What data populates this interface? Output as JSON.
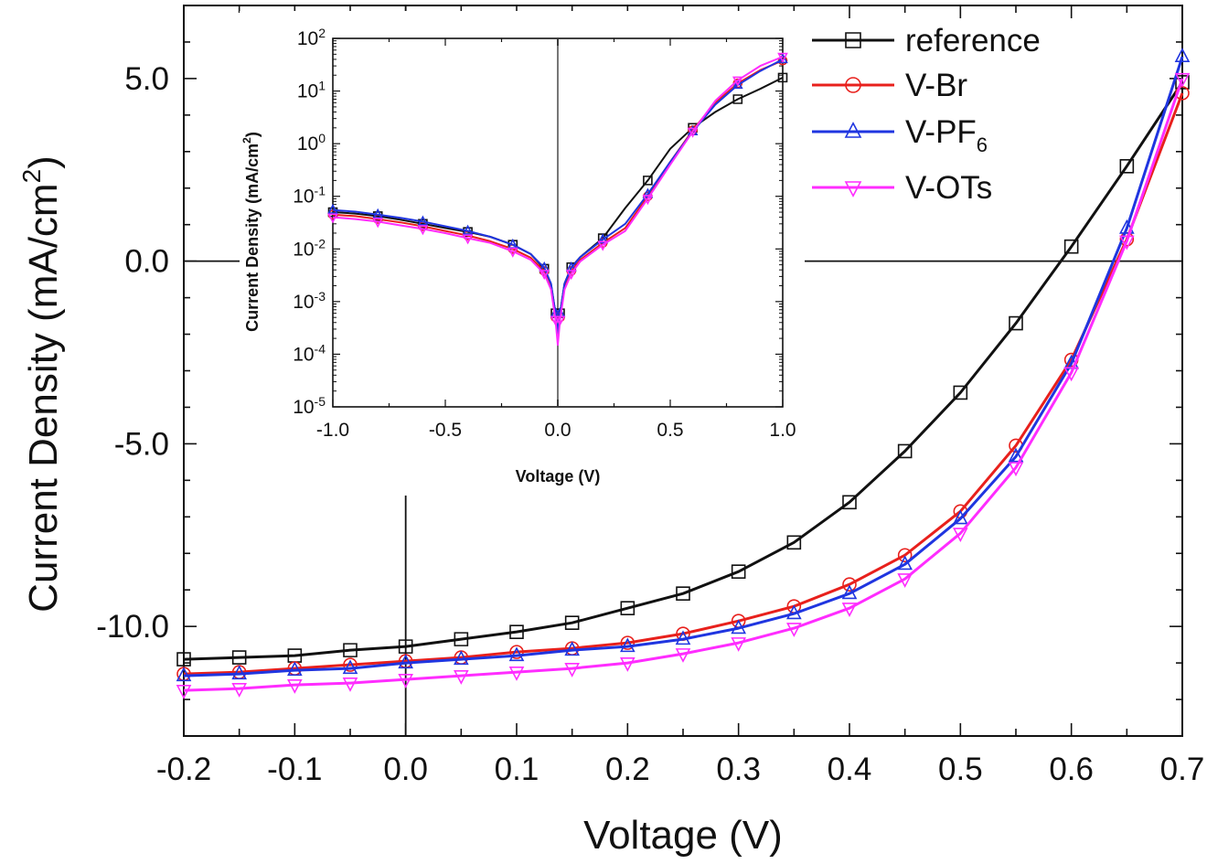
{
  "chart_data": [
    {
      "type": "line",
      "xlabel": "Voltage (V)",
      "ylabel": "Current Density (mA/cm²)",
      "xlim": [
        -0.2,
        0.7
      ],
      "ylim": [
        -13.0,
        7.0
      ],
      "xticks": [
        -0.2,
        -0.1,
        0.0,
        0.1,
        0.2,
        0.3,
        0.4,
        0.5,
        0.6,
        0.7
      ],
      "xtick_labels": [
        "-0.2",
        "-0.1",
        "0.0",
        "0.1",
        "0.2",
        "0.3",
        "0.4",
        "0.5",
        "0.6",
        "0.7"
      ],
      "yticks": [
        -10,
        -5,
        0,
        5
      ],
      "ytick_labels": [
        "-10.0",
        "-5.0",
        "0.0",
        "5.0"
      ],
      "legend_position": "top-right",
      "series": [
        {
          "name": "reference",
          "color": "#111111",
          "marker": "square",
          "x": [
            -0.2,
            -0.15,
            -0.1,
            -0.05,
            0.0,
            0.05,
            0.1,
            0.15,
            0.2,
            0.25,
            0.3,
            0.35,
            0.4,
            0.45,
            0.5,
            0.55,
            0.6,
            0.65,
            0.7
          ],
          "y": [
            -10.9,
            -10.85,
            -10.8,
            -10.65,
            -10.55,
            -10.35,
            -10.15,
            -9.9,
            -9.5,
            -9.1,
            -8.5,
            -7.7,
            -6.6,
            -5.2,
            -3.6,
            -1.7,
            0.4,
            2.6,
            4.9
          ]
        },
        {
          "name": "V-Br",
          "color": "#e8201c",
          "marker": "circle",
          "x": [
            -0.2,
            -0.15,
            -0.1,
            -0.05,
            0.0,
            0.05,
            0.1,
            0.15,
            0.2,
            0.25,
            0.3,
            0.35,
            0.4,
            0.45,
            0.5,
            0.55,
            0.6,
            0.65,
            0.7
          ],
          "y": [
            -11.3,
            -11.25,
            -11.15,
            -11.05,
            -10.95,
            -10.85,
            -10.7,
            -10.6,
            -10.45,
            -10.2,
            -9.85,
            -9.45,
            -8.85,
            -8.05,
            -6.85,
            -5.05,
            -2.7,
            0.6,
            4.6
          ]
        },
        {
          "name": "V-PF6",
          "color": "#1f35e0",
          "marker": "triangle-up",
          "x": [
            -0.2,
            -0.15,
            -0.1,
            -0.05,
            0.0,
            0.05,
            0.1,
            0.15,
            0.2,
            0.25,
            0.3,
            0.35,
            0.4,
            0.45,
            0.5,
            0.55,
            0.6,
            0.65,
            0.7
          ],
          "y": [
            -11.35,
            -11.3,
            -11.2,
            -11.15,
            -11.0,
            -10.9,
            -10.8,
            -10.65,
            -10.55,
            -10.35,
            -10.05,
            -9.65,
            -9.1,
            -8.3,
            -7.05,
            -5.35,
            -2.8,
            0.9,
            5.6
          ]
        },
        {
          "name": "V-OTs",
          "color": "#ff2cff",
          "marker": "triangle-down",
          "x": [
            -0.2,
            -0.15,
            -0.1,
            -0.05,
            0.0,
            0.05,
            0.1,
            0.15,
            0.2,
            0.25,
            0.3,
            0.35,
            0.4,
            0.45,
            0.5,
            0.55,
            0.6,
            0.65,
            0.7
          ],
          "y": [
            -11.75,
            -11.7,
            -11.6,
            -11.55,
            -11.45,
            -11.35,
            -11.25,
            -11.15,
            -11.0,
            -10.75,
            -10.45,
            -10.05,
            -9.5,
            -8.7,
            -7.45,
            -5.65,
            -3.05,
            0.55,
            5.0
          ]
        }
      ]
    },
    {
      "type": "line",
      "xlabel": "Voltage (V)",
      "ylabel": "Current Density (mA/cm²)",
      "xlim": [
        -1.0,
        1.0
      ],
      "ylim": [
        1e-05,
        100
      ],
      "y_scale": "log",
      "xticks": [
        -1.0,
        -0.5,
        0.0,
        0.5,
        1.0
      ],
      "xtick_labels": [
        "-1.0",
        "-0.5",
        "0.0",
        "0.5",
        "1.0"
      ],
      "ytick_labels": [
        "10-5",
        "10-4",
        "10-3",
        "10-2",
        "10-1",
        "100",
        "101",
        "102"
      ],
      "series": [
        {
          "name": "reference",
          "color": "#111111",
          "marker": "square",
          "x": [
            -1.0,
            -0.9,
            -0.8,
            -0.7,
            -0.6,
            -0.5,
            -0.4,
            -0.3,
            -0.2,
            -0.12,
            -0.06,
            -0.03,
            -0.01,
            0.0,
            0.01,
            0.03,
            0.06,
            0.1,
            0.2,
            0.3,
            0.4,
            0.5,
            0.6,
            0.7,
            0.8,
            0.9,
            1.0
          ],
          "y": [
            0.05,
            0.047,
            0.042,
            0.036,
            0.03,
            0.025,
            0.021,
            0.017,
            0.012,
            0.008,
            0.0042,
            0.0021,
            0.0006,
            0.00018,
            0.0006,
            0.0022,
            0.0045,
            0.007,
            0.016,
            0.06,
            0.2,
            0.8,
            2.0,
            4.0,
            7.0,
            11.0,
            18.0
          ]
        },
        {
          "name": "V-Br",
          "color": "#e8201c",
          "marker": "circle",
          "x": [
            -1.0,
            -0.9,
            -0.8,
            -0.7,
            -0.6,
            -0.5,
            -0.4,
            -0.3,
            -0.2,
            -0.12,
            -0.06,
            -0.03,
            -0.01,
            0.0,
            0.01,
            0.03,
            0.06,
            0.1,
            0.2,
            0.3,
            0.4,
            0.5,
            0.6,
            0.7,
            0.8,
            0.9,
            1.0
          ],
          "y": [
            0.045,
            0.042,
            0.037,
            0.032,
            0.027,
            0.022,
            0.018,
            0.014,
            0.01,
            0.0068,
            0.0038,
            0.0019,
            0.0005,
            0.0002,
            0.0005,
            0.0019,
            0.0038,
            0.0062,
            0.013,
            0.025,
            0.1,
            0.45,
            1.8,
            6.0,
            14.0,
            25.0,
            38.0
          ]
        },
        {
          "name": "V-PF6",
          "color": "#1f35e0",
          "marker": "triangle-up",
          "x": [
            -1.0,
            -0.9,
            -0.8,
            -0.7,
            -0.6,
            -0.5,
            -0.4,
            -0.3,
            -0.2,
            -0.12,
            -0.06,
            -0.03,
            -0.01,
            0.0,
            0.01,
            0.03,
            0.06,
            0.1,
            0.2,
            0.3,
            0.4,
            0.5,
            0.6,
            0.7,
            0.8,
            0.9,
            1.0
          ],
          "y": [
            0.055,
            0.051,
            0.045,
            0.039,
            0.033,
            0.027,
            0.022,
            0.017,
            0.012,
            0.008,
            0.0044,
            0.0022,
            0.0006,
            0.00025,
            0.0006,
            0.0022,
            0.0044,
            0.007,
            0.015,
            0.03,
            0.11,
            0.45,
            1.7,
            5.5,
            13.0,
            24.0,
            40.0
          ]
        },
        {
          "name": "V-OTs",
          "color": "#ff2cff",
          "marker": "triangle-down",
          "x": [
            -1.0,
            -0.9,
            -0.8,
            -0.7,
            -0.6,
            -0.5,
            -0.4,
            -0.3,
            -0.2,
            -0.12,
            -0.06,
            -0.03,
            -0.01,
            0.0,
            0.01,
            0.03,
            0.06,
            0.1,
            0.2,
            0.3,
            0.4,
            0.5,
            0.6,
            0.7,
            0.8,
            0.9,
            1.0
          ],
          "y": [
            0.04,
            0.037,
            0.033,
            0.028,
            0.024,
            0.02,
            0.016,
            0.013,
            0.009,
            0.0062,
            0.0034,
            0.0017,
            0.00045,
            0.00015,
            0.00045,
            0.0017,
            0.0034,
            0.0058,
            0.012,
            0.022,
            0.09,
            0.4,
            1.7,
            6.5,
            16.0,
            30.0,
            45.0
          ]
        }
      ]
    }
  ]
}
